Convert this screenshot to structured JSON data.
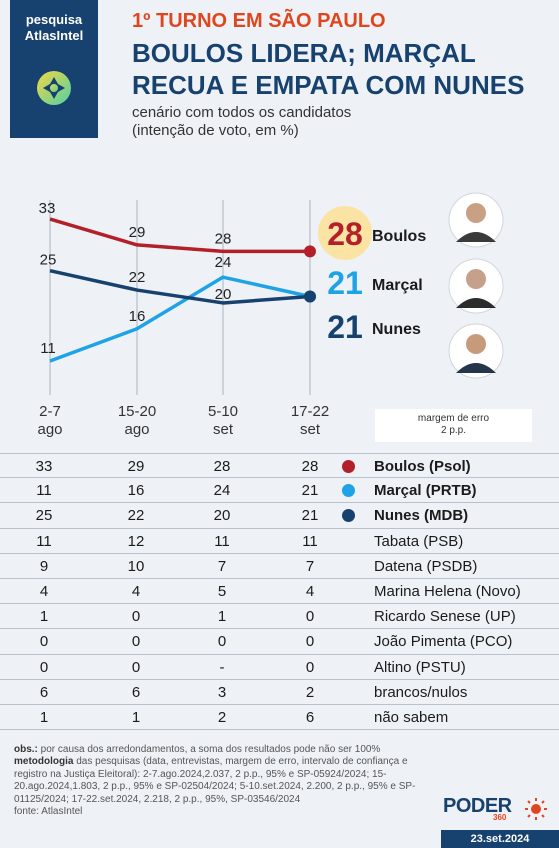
{
  "brand": {
    "line1": "pesquisa",
    "line2": "AtlasIntel"
  },
  "header": {
    "kicker": "1º TURNO EM SÃO PAULO",
    "headline1": "BOULOS LIDERA; MARÇAL",
    "headline2": "RECUA E EMPATA COM NUNES",
    "sub1": "cenário com todos os candidatos",
    "sub2": "(intenção de voto, em %)"
  },
  "chart_data": {
    "type": "line",
    "x": [
      "2-7 ago",
      "15-20 ago",
      "5-10 set",
      "17-22 set"
    ],
    "series": [
      {
        "name": "Boulos",
        "values": [
          33,
          29,
          28,
          28
        ],
        "color": "#b3202a"
      },
      {
        "name": "Marçal",
        "values": [
          11,
          16,
          24,
          21
        ],
        "color": "#1ea3e6"
      },
      {
        "name": "Nunes",
        "values": [
          25,
          22,
          20,
          21
        ],
        "color": "#17416e"
      }
    ]
  },
  "moe": {
    "line1": "margem de erro",
    "line2": "2 p.p."
  },
  "table": [
    {
      "values": [
        "33",
        "29",
        "28",
        "28"
      ],
      "name": "Boulos (Psol)",
      "color": "#b3202a",
      "bold": true
    },
    {
      "values": [
        "11",
        "16",
        "24",
        "21"
      ],
      "name": "Marçal (PRTB)",
      "color": "#1ea3e6",
      "bold": true
    },
    {
      "values": [
        "25",
        "22",
        "20",
        "21"
      ],
      "name": "Nunes (MDB)",
      "color": "#17416e",
      "bold": true
    },
    {
      "values": [
        "11",
        "12",
        "11",
        "11"
      ],
      "name": "Tabata (PSB)"
    },
    {
      "values": [
        "9",
        "10",
        "7",
        "7"
      ],
      "name": "Datena (PSDB)"
    },
    {
      "values": [
        "4",
        "4",
        "5",
        "4"
      ],
      "name": "Marina Helena (Novo)"
    },
    {
      "values": [
        "1",
        "0",
        "1",
        "0"
      ],
      "name": "Ricardo Senese (UP)"
    },
    {
      "values": [
        "0",
        "0",
        "0",
        "0"
      ],
      "name": "João Pimenta (PCO)"
    },
    {
      "values": [
        "0",
        "0",
        "-",
        "0"
      ],
      "name": "Altino (PSTU)"
    },
    {
      "values": [
        "6",
        "6",
        "3",
        "2"
      ],
      "name": "brancos/nulos"
    },
    {
      "values": [
        "1",
        "1",
        "2",
        "6"
      ],
      "name": "não sabem"
    }
  ],
  "notes": {
    "obs_label": "obs.:",
    "obs": " por causa dos arredondamentos, a soma dos resultados pode não ser 100%",
    "met_label": "metodologia",
    "met": " das pesquisas (data, entrevistas, margem de erro, intervalo de confiança e registro na Justiça Eleitoral): 2-7.ago.2024,2.037, 2 p.p., 95% e SP-05924/2024; 15-20.ago.2024,1.803, 2 p.p., 95% e SP-02504/2024; 5-10.set.2024, 2.200, 2 p.p., 95% e SP-01125/2024; 17-22.set.2024, 2.218, 2 p.p., 95%, SP-03546/2024",
    "source": "fonte: AtlasIntel"
  },
  "footer": {
    "logo": "PODER",
    "logo_sub": "360",
    "date": "23.set.2024"
  }
}
